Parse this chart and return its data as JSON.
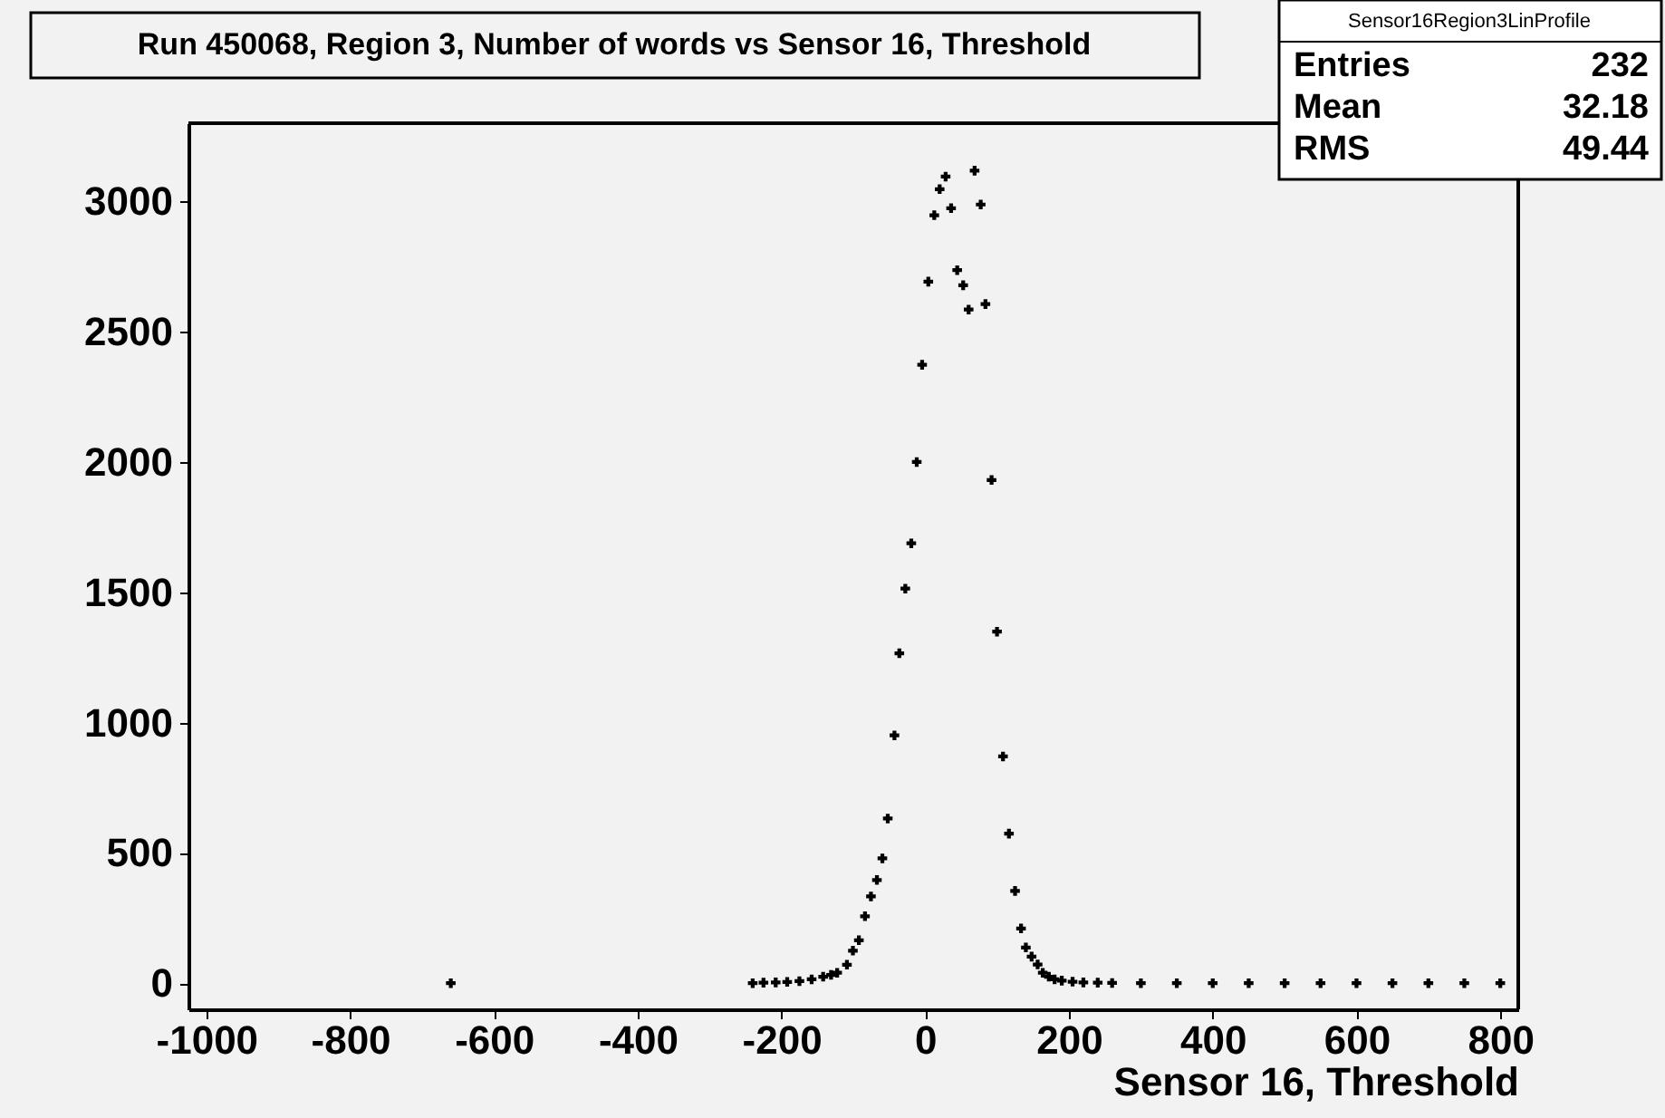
{
  "chart_data": {
    "type": "scatter",
    "title": "Run 450068, Region 3, Number of words vs Sensor 16, Threshold",
    "xlabel": "Sensor 16, Threshold",
    "annotations": [
      "Sensor16Region3LinProfile",
      "Entries",
      "232",
      "Mean",
      "32.18",
      "RMS",
      "49.44"
    ],
    "x": [
      -660,
      -240,
      -225,
      -208,
      -192,
      -175,
      -158,
      -142,
      -131,
      -122.5,
      -108.9,
      -100.6,
      -92.3,
      -83.8,
      -75.5,
      -67.2,
      -59.6,
      -52.1,
      -42.8,
      -36,
      -27.7,
      -19.4,
      -11.8,
      -4.3,
      4.3,
      12.6,
      20.1,
      28.4,
      36,
      44.5,
      52.8,
      60.4,
      68.7,
      77.2,
      83.8,
      92.3,
      99.9,
      108.2,
      116.5,
      125,
      133.3,
      140,
      148,
      156.4,
      163.5,
      172,
      180,
      190,
      205,
      220,
      240,
      260,
      300,
      350,
      400,
      450,
      500,
      550,
      600,
      650,
      700,
      750,
      800
    ],
    "series": [
      {
        "color": "#000000",
        "values": [
          0,
          0,
          2,
          3,
          5,
          8,
          15,
          25,
          32,
          40,
          71,
          125,
          165,
          257,
          333,
          396,
          479,
          632,
          951,
          1266,
          1514,
          1688,
          2000,
          2373,
          2692,
          2947,
          3047,
          3095,
          2974,
          2736,
          2678,
          2585,
          3118,
          2988,
          2606,
          1931,
          1349,
          870,
          574,
          354,
          210,
          137,
          102,
          72,
          40,
          25,
          15,
          10,
          6,
          3,
          2,
          1,
          0,
          0,
          0,
          0,
          0,
          0,
          0,
          0,
          0,
          0,
          0
        ]
      }
    ],
    "xlim": [
      -1025,
      825
    ],
    "ylim": [
      -100,
      3300
    ],
    "xticks": [
      -1000,
      -800,
      -600,
      -400,
      -200,
      0,
      200,
      400,
      600,
      800
    ],
    "yticks": [
      0,
      500,
      1000,
      1500,
      2000,
      2500,
      3000
    ],
    "marker": "cross",
    "grid": false
  }
}
